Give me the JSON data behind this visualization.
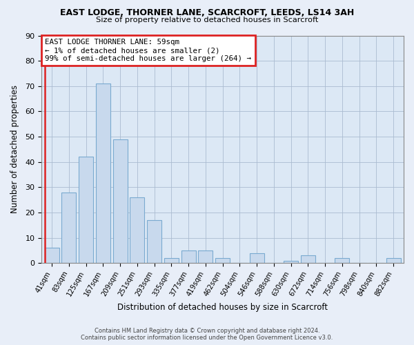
{
  "title": "EAST LODGE, THORNER LANE, SCARCROFT, LEEDS, LS14 3AH",
  "subtitle": "Size of property relative to detached houses in Scarcroft",
  "xlabel": "Distribution of detached houses by size in Scarcroft",
  "ylabel": "Number of detached properties",
  "bar_color": "#c8d9ed",
  "bar_edge_color": "#7aaad0",
  "highlight_color": "#dd2222",
  "bins": [
    "41sqm",
    "83sqm",
    "125sqm",
    "167sqm",
    "209sqm",
    "251sqm",
    "293sqm",
    "335sqm",
    "377sqm",
    "419sqm",
    "462sqm",
    "504sqm",
    "546sqm",
    "588sqm",
    "630sqm",
    "672sqm",
    "714sqm",
    "756sqm",
    "798sqm",
    "840sqm",
    "882sqm"
  ],
  "values": [
    6,
    28,
    42,
    71,
    49,
    26,
    17,
    2,
    5,
    5,
    2,
    0,
    4,
    0,
    1,
    3,
    0,
    2,
    0,
    0,
    2
  ],
  "annotation_text_line1": "EAST LODGE THORNER LANE: 59sqm",
  "annotation_text_line2": "← 1% of detached houses are smaller (2)",
  "annotation_text_line3": "99% of semi-detached houses are larger (264) →",
  "ylim": [
    0,
    90
  ],
  "yticks": [
    0,
    10,
    20,
    30,
    40,
    50,
    60,
    70,
    80,
    90
  ],
  "footer_line1": "Contains HM Land Registry data © Crown copyright and database right 2024.",
  "footer_line2": "Contains public sector information licensed under the Open Government Licence v3.0.",
  "background_color": "#e8eef8",
  "plot_background": "#dce8f5"
}
